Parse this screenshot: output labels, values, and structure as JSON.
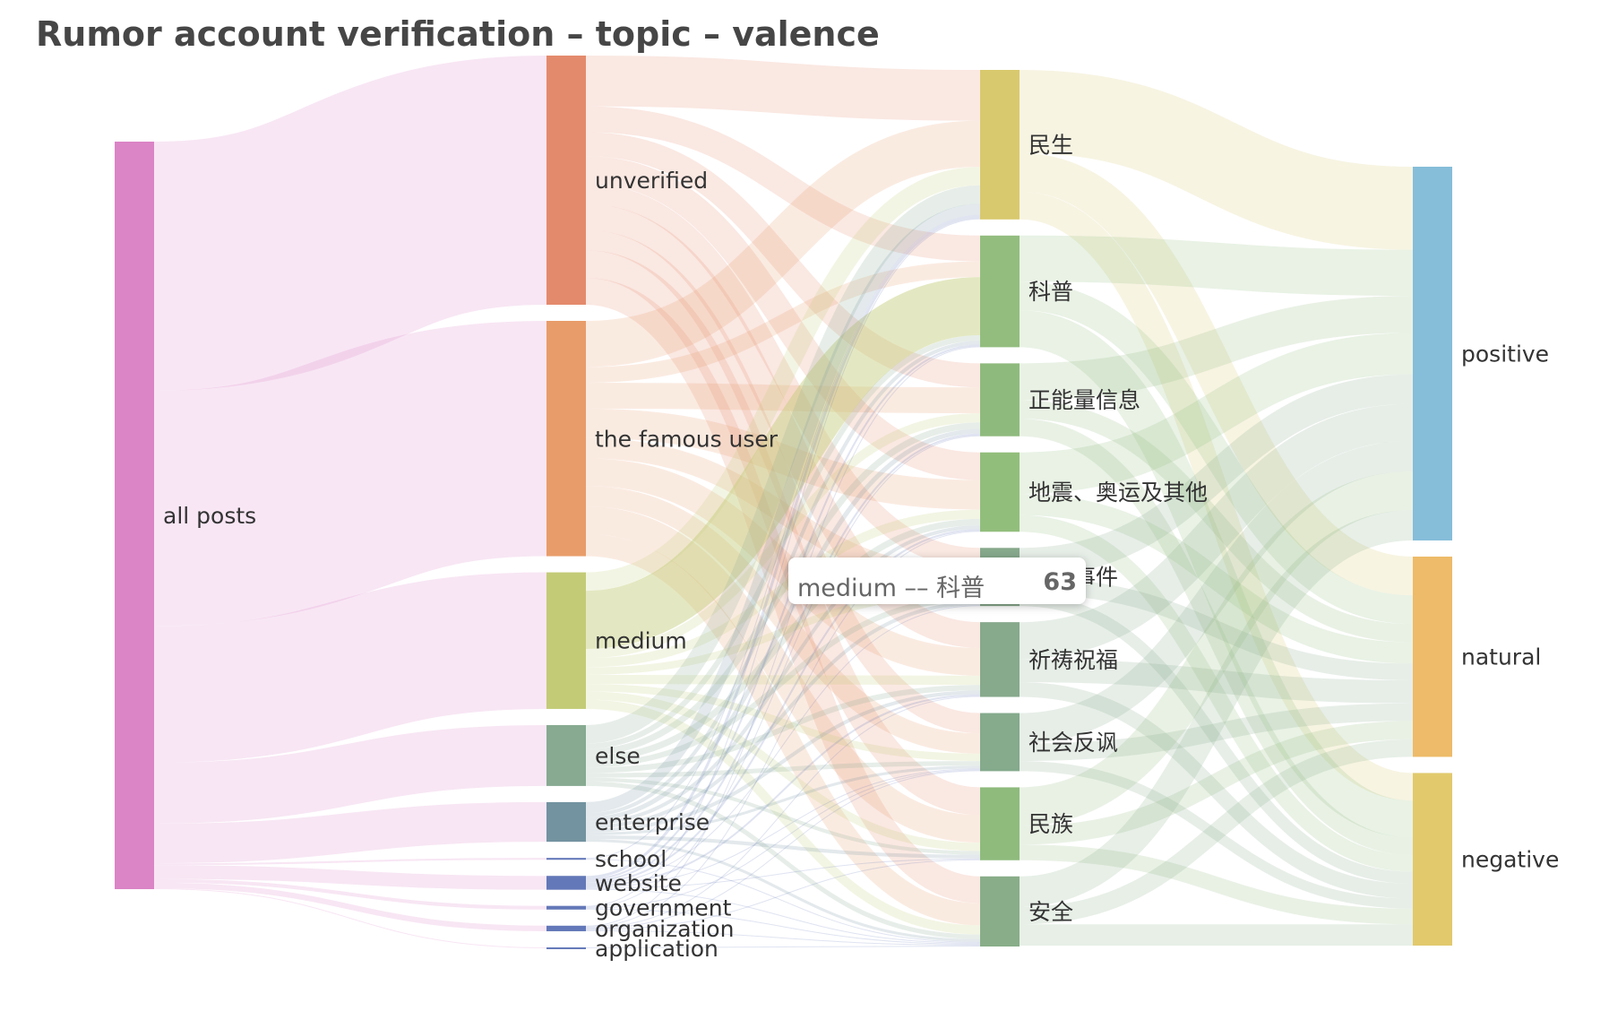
{
  "chart_data": {
    "type": "sankey",
    "title": "Rumor account verification – topic – valence",
    "columns": [
      [
        "all posts"
      ],
      [
        "unverified",
        "the famous user",
        "medium",
        "else",
        "enterprise",
        "school",
        "website",
        "government",
        "organization",
        "application"
      ],
      [
        "民生",
        "科普",
        "正能量信息",
        "地震、奥运及其他",
        "极端事件",
        "祈祷祝福",
        "社会反讽",
        "民族",
        "安全"
      ],
      [
        "positive",
        "natural",
        "negative"
      ]
    ],
    "nodes": [
      {
        "name": "all posts",
        "color": "#DB84C6"
      },
      {
        "name": "unverified",
        "color": "#E48A6C"
      },
      {
        "name": "the famous user",
        "color": "#E89C6A"
      },
      {
        "name": "medium",
        "color": "#C3CB77"
      },
      {
        "name": "else",
        "color": "#87AA91"
      },
      {
        "name": "enterprise",
        "color": "#7393A0"
      },
      {
        "name": "school",
        "color": "#6378B8"
      },
      {
        "name": "website",
        "color": "#6378B8"
      },
      {
        "name": "government",
        "color": "#6378B8"
      },
      {
        "name": "organization",
        "color": "#6378B8"
      },
      {
        "name": "application",
        "color": "#6378B8"
      },
      {
        "name": "民生",
        "color": "#D9C96E"
      },
      {
        "name": "科普",
        "color": "#93BD7F"
      },
      {
        "name": "正能量信息",
        "color": "#8FBA7E"
      },
      {
        "name": "地震、奥运及其他",
        "color": "#92BE7C"
      },
      {
        "name": "极端事件",
        "color": "#87A98C"
      },
      {
        "name": "祈祷祝福",
        "color": "#87A98C"
      },
      {
        "name": "社会反讽",
        "color": "#85AA8C"
      },
      {
        "name": "民族",
        "color": "#8FBB7D"
      },
      {
        "name": "安全",
        "color": "#89AD89"
      },
      {
        "name": "positive",
        "color": "#86BDD9"
      },
      {
        "name": "natural",
        "color": "#EDBB69"
      },
      {
        "name": "negative",
        "color": "#E2C96C"
      }
    ],
    "links": [
      {
        "source": "all posts",
        "target": "unverified",
        "value": 270
      },
      {
        "source": "all posts",
        "target": "the famous user",
        "value": 255
      },
      {
        "source": "all posts",
        "target": "medium",
        "value": 148
      },
      {
        "source": "all posts",
        "target": "else",
        "value": 66
      },
      {
        "source": "all posts",
        "target": "enterprise",
        "value": 43
      },
      {
        "source": "all posts",
        "target": "school",
        "value": 2
      },
      {
        "source": "all posts",
        "target": "website",
        "value": 15
      },
      {
        "source": "all posts",
        "target": "government",
        "value": 4
      },
      {
        "source": "all posts",
        "target": "organization",
        "value": 6
      },
      {
        "source": "all posts",
        "target": "application",
        "value": 1
      },
      {
        "source": "unverified",
        "target": "民生",
        "value": 55
      },
      {
        "source": "unverified",
        "target": "科普",
        "value": 28
      },
      {
        "source": "unverified",
        "target": "正能量信息",
        "value": 26
      },
      {
        "source": "unverified",
        "target": "地震、奥运及其他",
        "value": 30
      },
      {
        "source": "unverified",
        "target": "极端事件",
        "value": 22
      },
      {
        "source": "unverified",
        "target": "祈祷祝福",
        "value": 28
      },
      {
        "source": "unverified",
        "target": "社会反讽",
        "value": 22
      },
      {
        "source": "unverified",
        "target": "民族",
        "value": 30
      },
      {
        "source": "unverified",
        "target": "安全",
        "value": 29
      },
      {
        "source": "the famous user",
        "target": "民生",
        "value": 50
      },
      {
        "source": "the famous user",
        "target": "科普",
        "value": 17
      },
      {
        "source": "the famous user",
        "target": "正能量信息",
        "value": 28
      },
      {
        "source": "the famous user",
        "target": "地震、奥运及其他",
        "value": 32
      },
      {
        "source": "the famous user",
        "target": "极端事件",
        "value": 22
      },
      {
        "source": "the famous user",
        "target": "祈祷祝福",
        "value": 30
      },
      {
        "source": "the famous user",
        "target": "社会反讽",
        "value": 22
      },
      {
        "source": "the famous user",
        "target": "民族",
        "value": 30
      },
      {
        "source": "the famous user",
        "target": "安全",
        "value": 24
      },
      {
        "source": "medium",
        "target": "民生",
        "value": 20
      },
      {
        "source": "medium",
        "target": "科普",
        "value": 63
      },
      {
        "source": "medium",
        "target": "正能量信息",
        "value": 10
      },
      {
        "source": "medium",
        "target": "地震、奥运及其他",
        "value": 10
      },
      {
        "source": "medium",
        "target": "极端事件",
        "value": 8
      },
      {
        "source": "medium",
        "target": "祈祷祝福",
        "value": 10
      },
      {
        "source": "medium",
        "target": "社会反讽",
        "value": 8
      },
      {
        "source": "medium",
        "target": "民族",
        "value": 9
      },
      {
        "source": "medium",
        "target": "安全",
        "value": 10
      },
      {
        "source": "else",
        "target": "民生",
        "value": 20
      },
      {
        "source": "else",
        "target": "科普",
        "value": 6
      },
      {
        "source": "else",
        "target": "正能量信息",
        "value": 7
      },
      {
        "source": "else",
        "target": "地震、奥运及其他",
        "value": 7
      },
      {
        "source": "else",
        "target": "极端事件",
        "value": 6
      },
      {
        "source": "else",
        "target": "祈祷祝福",
        "value": 6
      },
      {
        "source": "else",
        "target": "社会反讽",
        "value": 5
      },
      {
        "source": "else",
        "target": "民族",
        "value": 4
      },
      {
        "source": "else",
        "target": "安全",
        "value": 5
      },
      {
        "source": "enterprise",
        "target": "民生",
        "value": 12
      },
      {
        "source": "enterprise",
        "target": "科普",
        "value": 4
      },
      {
        "source": "enterprise",
        "target": "正能量信息",
        "value": 5
      },
      {
        "source": "enterprise",
        "target": "地震、奥运及其他",
        "value": 4
      },
      {
        "source": "enterprise",
        "target": "极端事件",
        "value": 4
      },
      {
        "source": "enterprise",
        "target": "祈祷祝福",
        "value": 4
      },
      {
        "source": "enterprise",
        "target": "社会反讽",
        "value": 3
      },
      {
        "source": "enterprise",
        "target": "民族",
        "value": 4
      },
      {
        "source": "enterprise",
        "target": "安全",
        "value": 3
      },
      {
        "source": "school",
        "target": "民生",
        "value": 1
      },
      {
        "source": "school",
        "target": "安全",
        "value": 1
      },
      {
        "source": "website",
        "target": "民生",
        "value": 3
      },
      {
        "source": "website",
        "target": "科普",
        "value": 2
      },
      {
        "source": "website",
        "target": "正能量信息",
        "value": 2
      },
      {
        "source": "website",
        "target": "地震、奥运及其他",
        "value": 2
      },
      {
        "source": "website",
        "target": "极端事件",
        "value": 1
      },
      {
        "source": "website",
        "target": "祈祷祝福",
        "value": 2
      },
      {
        "source": "website",
        "target": "社会反讽",
        "value": 1
      },
      {
        "source": "website",
        "target": "民族",
        "value": 1
      },
      {
        "source": "website",
        "target": "安全",
        "value": 1
      },
      {
        "source": "government",
        "target": "民生",
        "value": 1
      },
      {
        "source": "government",
        "target": "正能量信息",
        "value": 1
      },
      {
        "source": "government",
        "target": "社会反讽",
        "value": 1
      },
      {
        "source": "government",
        "target": "安全",
        "value": 1
      },
      {
        "source": "organization",
        "target": "科普",
        "value": 1
      },
      {
        "source": "organization",
        "target": "地震、奥运及其他",
        "value": 1
      },
      {
        "source": "organization",
        "target": "祈祷祝福",
        "value": 1
      },
      {
        "source": "organization",
        "target": "社会反讽",
        "value": 1
      },
      {
        "source": "organization",
        "target": "民族",
        "value": 1
      },
      {
        "source": "organization",
        "target": "安全",
        "value": 1
      },
      {
        "source": "application",
        "target": "安全",
        "value": 1
      },
      {
        "source": "民生",
        "target": "positive",
        "value": 90
      },
      {
        "source": "民生",
        "target": "natural",
        "value": 42
      },
      {
        "source": "民生",
        "target": "negative",
        "value": 30
      },
      {
        "source": "科普",
        "target": "positive",
        "value": 50
      },
      {
        "source": "科普",
        "target": "natural",
        "value": 31
      },
      {
        "source": "科普",
        "target": "negative",
        "value": 40
      },
      {
        "source": "正能量信息",
        "target": "positive",
        "value": 40
      },
      {
        "source": "正能量信息",
        "target": "natural",
        "value": 20
      },
      {
        "source": "正能量信息",
        "target": "negative",
        "value": 19
      },
      {
        "source": "地震、奥运及其他",
        "target": "positive",
        "value": 45
      },
      {
        "source": "地震、奥运及其他",
        "target": "natural",
        "value": 23
      },
      {
        "source": "地震、奥运及其他",
        "target": "negative",
        "value": 18
      },
      {
        "source": "极端事件",
        "target": "positive",
        "value": 32
      },
      {
        "source": "极端事件",
        "target": "natural",
        "value": 18
      },
      {
        "source": "极端事件",
        "target": "negative",
        "value": 13
      },
      {
        "source": "祈祷祝福",
        "target": "positive",
        "value": 40
      },
      {
        "source": "祈祷祝福",
        "target": "natural",
        "value": 25
      },
      {
        "source": "祈祷祝福",
        "target": "negative",
        "value": 16
      },
      {
        "source": "社会反讽",
        "target": "positive",
        "value": 33
      },
      {
        "source": "社会反讽",
        "target": "natural",
        "value": 19
      },
      {
        "source": "社会反讽",
        "target": "negative",
        "value": 11
      },
      {
        "source": "民族",
        "target": "positive",
        "value": 42
      },
      {
        "source": "民族",
        "target": "natural",
        "value": 20
      },
      {
        "source": "民族",
        "target": "negative",
        "value": 17
      },
      {
        "source": "安全",
        "target": "positive",
        "value": 33
      },
      {
        "source": "安全",
        "target": "natural",
        "value": 19
      },
      {
        "source": "安全",
        "target": "negative",
        "value": 23
      }
    ],
    "link_opacity": 0.2,
    "highlighted_link": {
      "source": "medium",
      "target": "科普"
    }
  },
  "tooltip": {
    "name": "medium –– 科普",
    "value": "63"
  }
}
